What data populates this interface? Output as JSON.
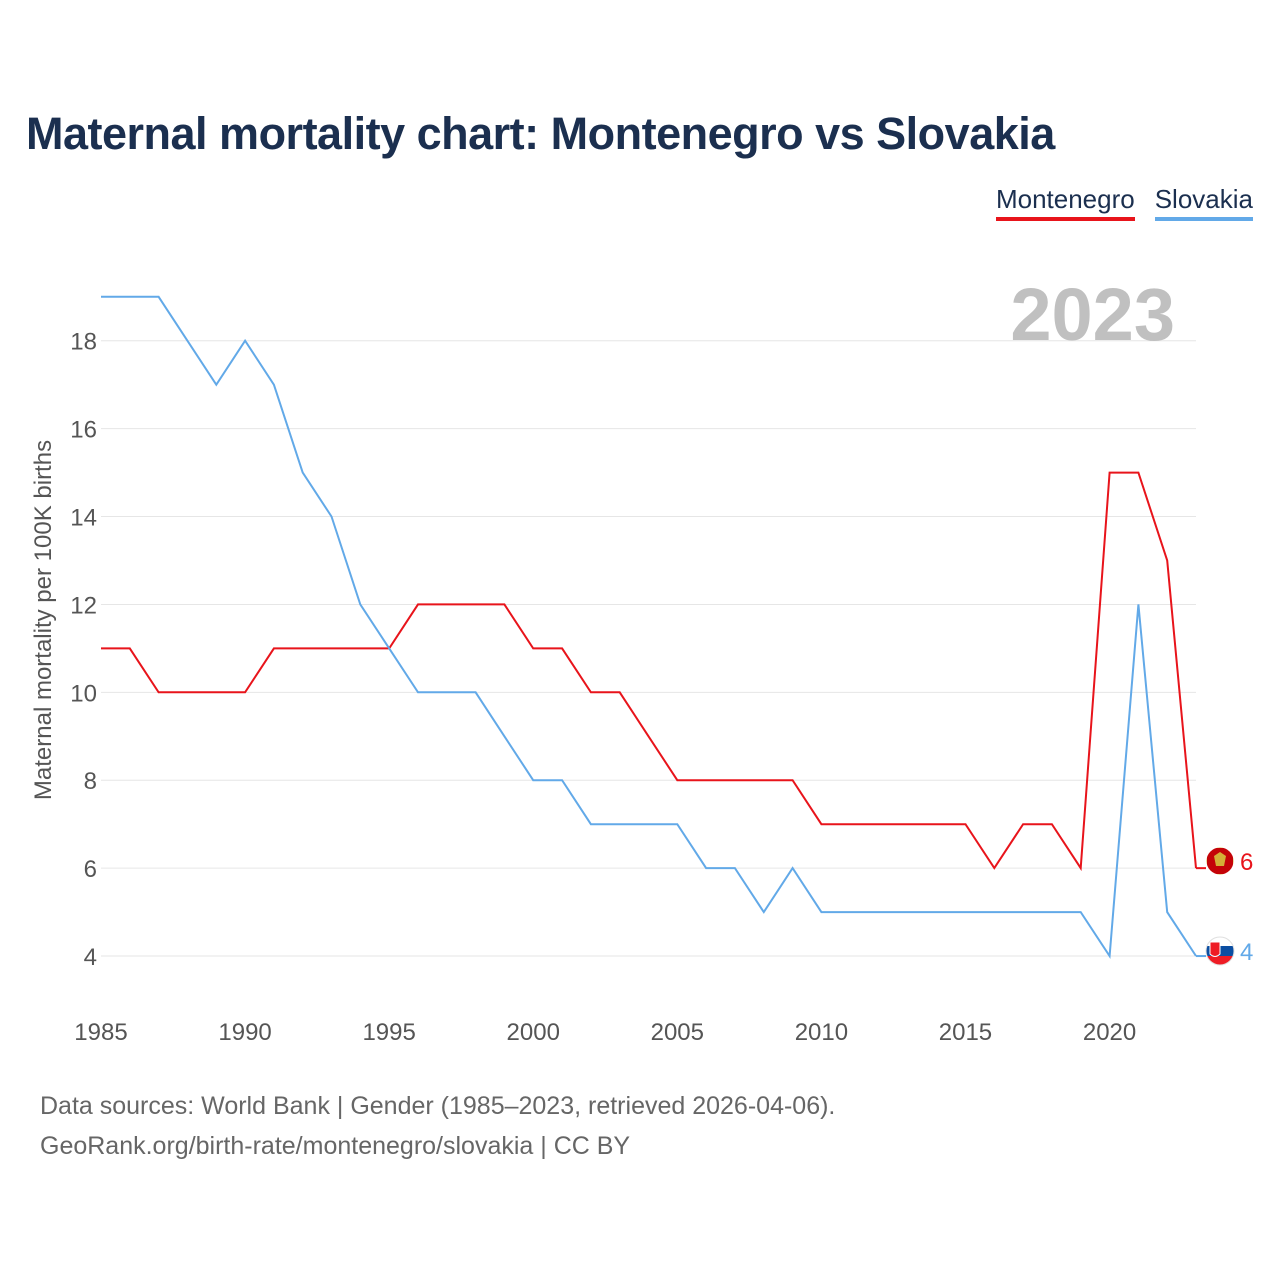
{
  "title": "Maternal mortality chart: Montenegro vs Slovakia",
  "legend": {
    "montenegro": "Montenegro",
    "slovakia": "Slovakia"
  },
  "colors": {
    "montenegro": "#e8141b",
    "slovakia": "#62a9e8",
    "title": "#1b2f4f",
    "grid": "#e6e6e6",
    "axis_text": "#555555",
    "year": "#c0c0c0"
  },
  "footer": {
    "line1": "Data sources: World Bank | Gender (1985–2023, retrieved 2026-04-06).",
    "line2": "GeoRank.org/birth-rate/montenegro/slovakia | CC BY"
  },
  "chart_data": {
    "type": "line",
    "title": "Maternal mortality chart: Montenegro vs Slovakia",
    "year_label": "2023",
    "xlabel": "",
    "ylabel": "Maternal mortality per 100K births",
    "xlim": [
      1985,
      2023
    ],
    "ylim": [
      3,
      19.2
    ],
    "x_ticks": [
      1985,
      1990,
      1995,
      2000,
      2005,
      2010,
      2015,
      2020
    ],
    "y_ticks": [
      4,
      6,
      8,
      10,
      12,
      14,
      16,
      18
    ],
    "x": [
      1985,
      1986,
      1987,
      1988,
      1989,
      1990,
      1991,
      1992,
      1993,
      1994,
      1995,
      1996,
      1997,
      1998,
      1999,
      2000,
      2001,
      2002,
      2003,
      2004,
      2005,
      2006,
      2007,
      2008,
      2009,
      2010,
      2011,
      2012,
      2013,
      2014,
      2015,
      2016,
      2017,
      2018,
      2019,
      2020,
      2021,
      2022,
      2023
    ],
    "series": [
      {
        "name": "Montenegro",
        "key": "montenegro",
        "values": [
          11,
          11,
          10,
          10,
          10,
          10,
          11,
          11,
          11,
          11,
          11,
          12,
          12,
          12,
          12,
          11,
          11,
          10,
          10,
          9,
          8,
          8,
          8,
          8,
          8,
          7,
          7,
          7,
          7,
          7,
          7,
          6,
          7,
          7,
          6,
          15,
          15,
          13,
          6
        ],
        "end_label": "6"
      },
      {
        "name": "Slovakia",
        "key": "slovakia",
        "values": [
          19,
          19,
          19,
          18,
          17,
          18,
          17,
          15,
          14,
          12,
          11,
          10,
          10,
          10,
          9,
          8,
          8,
          7,
          7,
          7,
          7,
          6,
          6,
          5,
          6,
          5,
          5,
          5,
          5,
          5,
          5,
          5,
          5,
          5,
          5,
          4,
          12,
          5,
          4
        ],
        "end_label": "4"
      }
    ],
    "legend_position": "top-right",
    "grid": true
  }
}
